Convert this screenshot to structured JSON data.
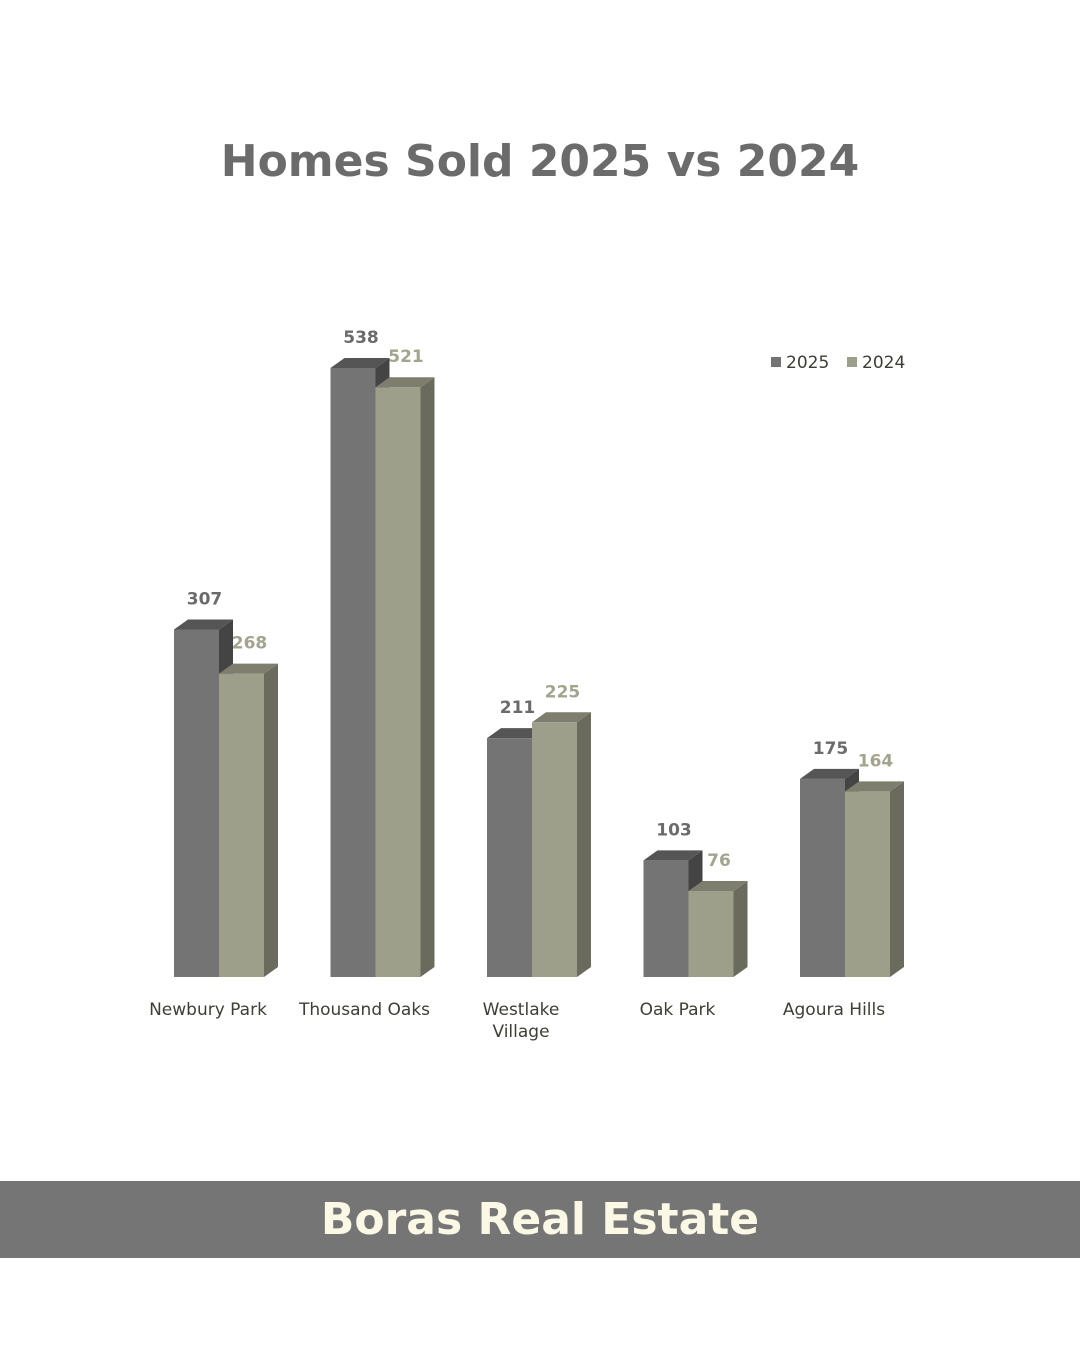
{
  "header": {
    "title": "Homes Sold 2025 vs 2024"
  },
  "footer": {
    "brand": "Boras Real Estate"
  },
  "chart_data": {
    "type": "bar",
    "title": "Homes Sold 2025 vs 2024",
    "categories": [
      [
        "Newbury Park"
      ],
      [
        "Thousand Oaks"
      ],
      [
        "Westlake",
        "Village"
      ],
      [
        "Oak Park"
      ],
      [
        "Agoura Hills"
      ]
    ],
    "series": [
      {
        "name": "2025",
        "values": [
          307,
          538,
          211,
          103,
          175
        ],
        "color": "#747474",
        "top_color": "#555555",
        "side_color": "#444444",
        "label_color": "#6b6b6b"
      },
      {
        "name": "2024",
        "values": [
          268,
          521,
          225,
          76,
          164
        ],
        "color": "#9e9f8b",
        "top_color": "#7d7e6e",
        "side_color": "#6a6b5d",
        "label_color": "#a3a48d"
      }
    ],
    "ylim": [
      0,
      538
    ],
    "grid": false,
    "legend": "top-right",
    "xlabel": "",
    "ylabel": ""
  }
}
